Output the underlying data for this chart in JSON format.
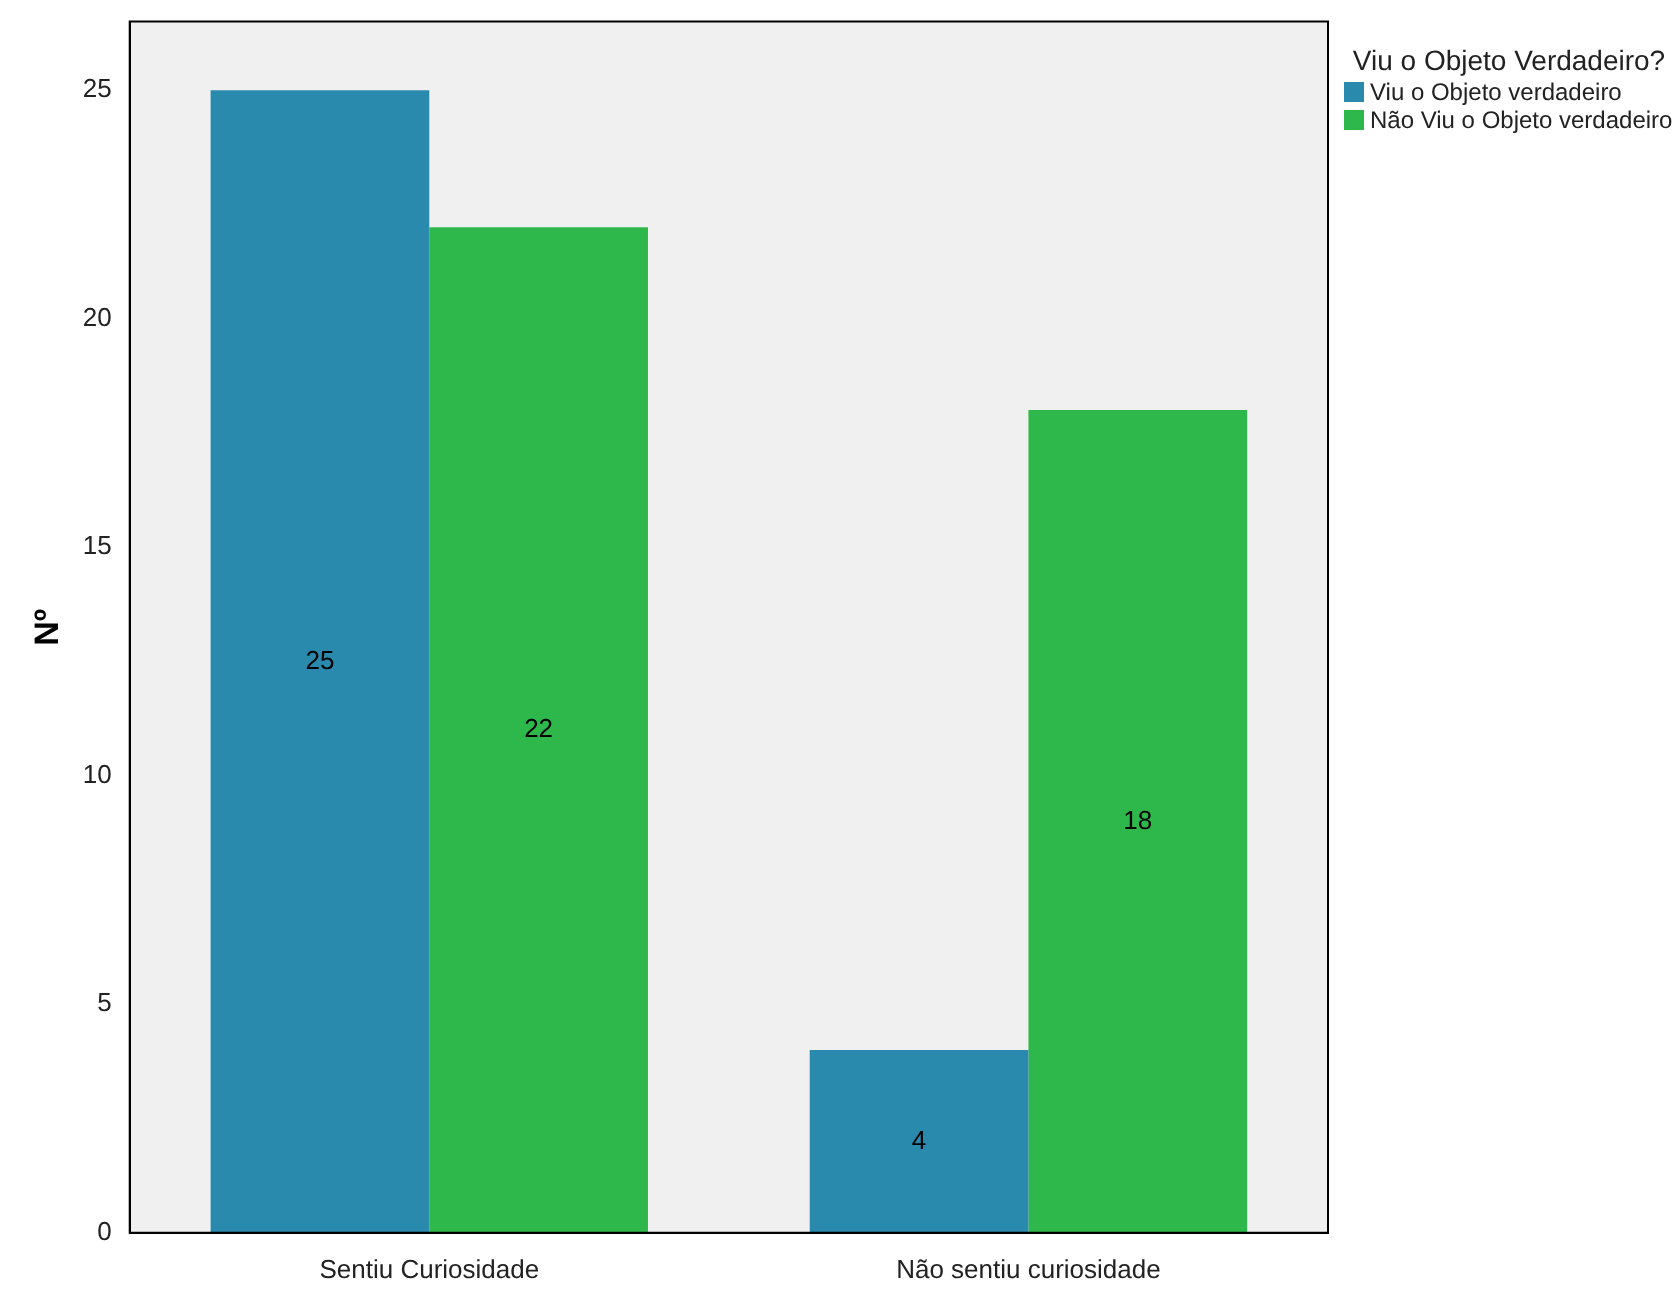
{
  "chart_data": {
    "type": "bar",
    "categories": [
      "Sentiu Curiosidade",
      "Não sentiu curiosidade"
    ],
    "series": [
      {
        "name": "Viu o Objeto verdadeiro",
        "color": "#2a8aad",
        "values": [
          25,
          4
        ]
      },
      {
        "name": "Não Viu o Objeto verdadeiro",
        "color": "#2eb84b",
        "values": [
          22,
          18
        ]
      }
    ],
    "ylabel": "Nº",
    "legend_title": "Viu o Objeto Verdadeiro?",
    "ylim": [
      0,
      26.5
    ],
    "yticks": [
      0,
      5,
      10,
      15,
      20,
      25
    ],
    "grid": false,
    "legend": "top right",
    "data_labels": true
  }
}
